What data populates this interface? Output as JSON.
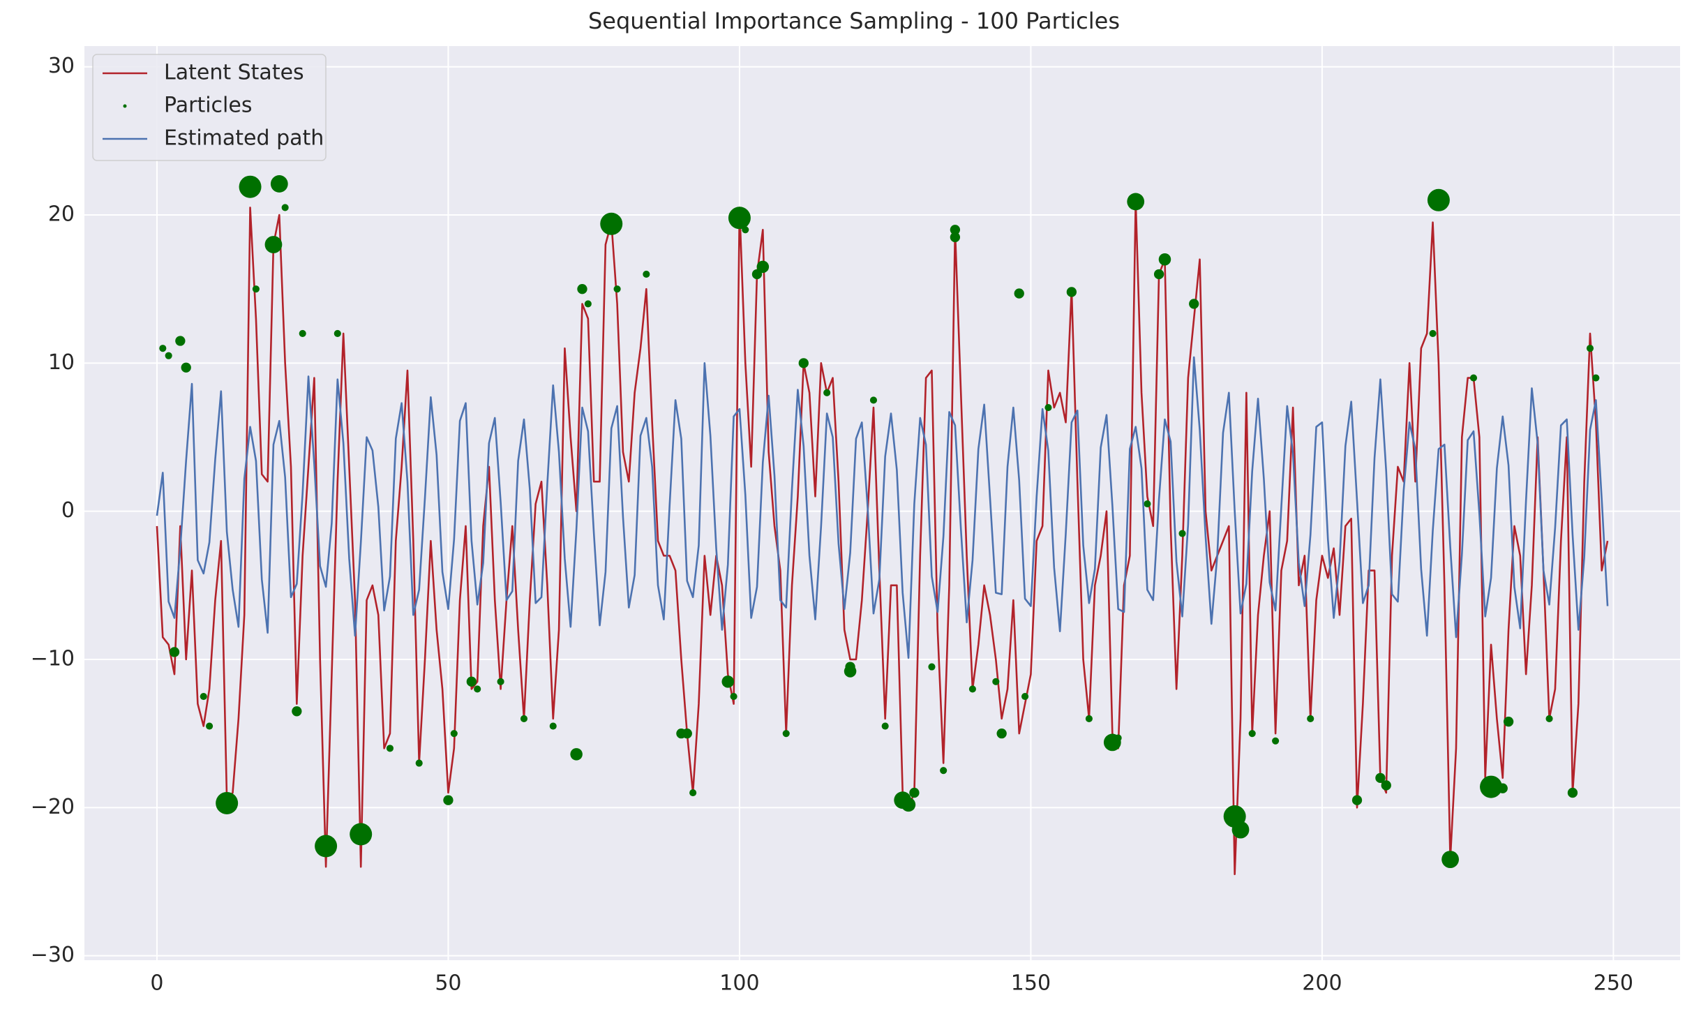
{
  "chart_data": {
    "type": "line",
    "title": "Sequential Importance Sampling - 100 Particles",
    "x": [
      0,
      1,
      2,
      3,
      4,
      5,
      6,
      7,
      8,
      9,
      10,
      11,
      12,
      13,
      14,
      15,
      16,
      17,
      18,
      19,
      20,
      21,
      22,
      23,
      24,
      25,
      26,
      27,
      28,
      29,
      30,
      31,
      32,
      33,
      34,
      35,
      36,
      37,
      38,
      39,
      40,
      41,
      42,
      43,
      44,
      45,
      46,
      47,
      48,
      49,
      50,
      51,
      52,
      53,
      54,
      55,
      56,
      57,
      58,
      59,
      60,
      61,
      62,
      63,
      64,
      65,
      66,
      67,
      68,
      69,
      70,
      71,
      72,
      73,
      74,
      75,
      76,
      77,
      78,
      79,
      80,
      81,
      82,
      83,
      84,
      85,
      86,
      87,
      88,
      89,
      90,
      91,
      92,
      93,
      94,
      95,
      96,
      97,
      98,
      99,
      100,
      101,
      102,
      103,
      104,
      105,
      106,
      107,
      108,
      109,
      110,
      111,
      112,
      113,
      114,
      115,
      116,
      117,
      118,
      119,
      120,
      121,
      122,
      123,
      124,
      125,
      126,
      127,
      128,
      129,
      130,
      131,
      132,
      133,
      134,
      135,
      136,
      137,
      138,
      139,
      140,
      141,
      142,
      143,
      144,
      145,
      146,
      147,
      148,
      149,
      150,
      151,
      152,
      153,
      154,
      155,
      156,
      157,
      158,
      159,
      160,
      161,
      162,
      163,
      164,
      165,
      166,
      167,
      168,
      169,
      170,
      171,
      172,
      173,
      174,
      175,
      176,
      177,
      178,
      179,
      180,
      181,
      182,
      183,
      184,
      185,
      186,
      187,
      188,
      189,
      190,
      191,
      192,
      193,
      194,
      195,
      196,
      197,
      198,
      199,
      200,
      201,
      202,
      203,
      204,
      205,
      206,
      207,
      208,
      209,
      210,
      211,
      212,
      213,
      214,
      215,
      216,
      217,
      218,
      219,
      220,
      221,
      222,
      223,
      224,
      225,
      226,
      227,
      228,
      229,
      230,
      231,
      232,
      233,
      234,
      235,
      236,
      237,
      238,
      239,
      240,
      241,
      242,
      243,
      244,
      245,
      246,
      247,
      248,
      249
    ],
    "series": [
      {
        "name": "Latent States",
        "color": "#b2222a",
        "values": [
          -1,
          -8.5,
          -9,
          -11,
          -1,
          -10,
          -4,
          -13,
          -14.5,
          -12,
          -6,
          -2,
          -19.5,
          -19,
          -14,
          -7,
          20.5,
          13,
          2.5,
          2,
          18,
          20,
          10,
          3,
          -13,
          -3,
          3,
          9,
          -10,
          -24,
          -11,
          2,
          12,
          3,
          -6,
          -24,
          -6,
          -5,
          -7,
          -16,
          -15,
          -2,
          3,
          9.5,
          -2,
          -17,
          -10,
          -2,
          -8,
          -12,
          -19,
          -16,
          -6,
          -1,
          -12,
          -11.5,
          -1,
          3,
          -6,
          -12,
          -6,
          -1,
          -8,
          -14,
          -6,
          0.5,
          2,
          -5,
          -14,
          -8,
          11,
          5,
          0,
          14,
          13,
          2,
          2,
          18,
          19.5,
          14,
          4,
          2,
          8,
          11,
          15,
          6,
          -2,
          -3,
          -3,
          -4,
          -10,
          -15,
          -19,
          -13,
          -3,
          -7,
          -3,
          -5,
          -11,
          -13,
          20.5,
          10,
          3,
          16,
          19,
          4,
          -1,
          -4,
          -15,
          -5,
          1,
          10,
          8,
          1,
          10,
          8,
          9,
          2,
          -8,
          -10,
          -10,
          -6,
          0,
          7,
          -4,
          -14,
          -5,
          -5,
          -19,
          -20,
          -19,
          -3,
          9,
          9.5,
          -8,
          -17,
          -5,
          19,
          8,
          -3,
          -12,
          -9,
          -5,
          -7,
          -10,
          -14,
          -12,
          -6,
          -15,
          -13,
          -11,
          -2,
          -1,
          9.5,
          7,
          8,
          6,
          15,
          2,
          -10,
          -14,
          -5,
          -3,
          0,
          -15,
          -16,
          -5,
          -3,
          21,
          8,
          1,
          -1,
          16,
          17,
          -1,
          -12,
          -3,
          9,
          13,
          17,
          0,
          -4,
          -3,
          -2,
          -1,
          -24.5,
          -14,
          8,
          -15,
          -7,
          -3,
          0,
          -15,
          -4,
          -2,
          7,
          -5,
          -3,
          -14,
          -6,
          -3,
          -4.5,
          -2.5,
          -7,
          -1,
          -0.5,
          -20,
          -13,
          -4,
          -4,
          -18,
          -19,
          -3,
          3,
          2,
          10,
          2,
          11,
          12,
          19.5,
          10,
          -5,
          -23.5,
          -16,
          5,
          9,
          9,
          5,
          -18,
          -9,
          -14,
          -18,
          -8,
          -1,
          -3,
          -11,
          -5,
          5,
          -4,
          -14,
          -12,
          -2,
          5,
          -19,
          -13,
          2,
          12,
          6,
          -4,
          -2
        ]
      },
      {
        "name": "Particles",
        "type": "scatter",
        "color": "#007000",
        "x": [
          12,
          16,
          21,
          20,
          29,
          35,
          78,
          100,
          168,
          220,
          185,
          186,
          229,
          222,
          164,
          148,
          137,
          128,
          129,
          173,
          178,
          72,
          90,
          104,
          119,
          4,
          5,
          1,
          2,
          3,
          8,
          9,
          24,
          25,
          31,
          40,
          45,
          50,
          51,
          54,
          55,
          59,
          63,
          68,
          73,
          74,
          79,
          84,
          91,
          92,
          98,
          99,
          103,
          108,
          111,
          115,
          119,
          123,
          125,
          130,
          133,
          135,
          140,
          144,
          145,
          149,
          153,
          157,
          160,
          165,
          170,
          172,
          176,
          188,
          192,
          198,
          206,
          210,
          211,
          219,
          226,
          231,
          232,
          239,
          243,
          246,
          247,
          137,
          101,
          17,
          22
        ],
        "values": [
          -19.7,
          21.9,
          22.1,
          18,
          -22.6,
          -21.8,
          19.4,
          19.8,
          20.9,
          21,
          -20.6,
          -21.5,
          -18.6,
          -23.5,
          -15.6,
          14.7,
          19,
          -19.5,
          -19.8,
          17,
          14,
          -16.4,
          -15,
          16.5,
          -10.8,
          11.5,
          9.7,
          11,
          10.5,
          -9.5,
          -12.5,
          -14.5,
          -13.5,
          12,
          12,
          -16,
          -17,
          -19.5,
          -15,
          -11.5,
          -12,
          -11.5,
          -14,
          -14.5,
          15,
          14,
          15,
          16,
          -15,
          -19,
          -11.5,
          -12.5,
          16,
          -15,
          10,
          8,
          -10.5,
          7.5,
          -14.5,
          -19,
          -10.5,
          -17.5,
          -12,
          -11.5,
          -15,
          -12.5,
          7,
          14.8,
          -14,
          -15.3,
          0.5,
          16,
          -1.5,
          -15,
          -15.5,
          -14,
          -19.5,
          -18,
          -18.5,
          12,
          9,
          -18.7,
          -14.2,
          -14,
          -19,
          11,
          9,
          18.5,
          19,
          15,
          20.5
        ],
        "sizes": [
          100,
          100,
          60,
          60,
          100,
          100,
          100,
          100,
          60,
          100,
          100,
          60,
          100,
          60,
          60,
          20,
          20,
          60,
          40,
          30,
          20,
          30,
          20,
          30,
          30,
          20,
          20,
          10,
          10,
          20,
          10,
          10,
          20,
          10,
          10,
          10,
          10,
          20,
          10,
          20,
          10,
          10,
          10,
          10,
          20,
          10,
          10,
          10,
          20,
          10,
          30,
          10,
          20,
          10,
          20,
          10,
          20,
          10,
          10,
          20,
          10,
          10,
          10,
          10,
          20,
          10,
          10,
          20,
          10,
          10,
          10,
          20,
          10,
          10,
          10,
          10,
          20,
          20,
          20,
          10,
          10,
          20,
          20,
          10,
          20,
          10,
          10,
          20,
          10,
          10,
          10
        ]
      },
      {
        "name": "Estimated path",
        "color": "#4c72b0",
        "values": [
          -0.3,
          2.6,
          -6.1,
          -7.2,
          -2.5,
          3.4,
          8.6,
          -3.3,
          -4.2,
          -2.1,
          3.5,
          8.1,
          -1.4,
          -5.3,
          -7.8,
          2.2,
          5.7,
          3.4,
          -4.6,
          -8.2,
          4.5,
          6.1,
          2.3,
          -5.8,
          -4.9,
          1.2,
          9.1,
          3.2,
          -3.7,
          -5.1,
          -0.8,
          8.9,
          4.6,
          -3.2,
          -8.4,
          -2.1,
          5.0,
          4.1,
          0.3,
          -6.7,
          -4.4,
          4.9,
          7.3,
          2.0,
          -7.0,
          -5.3,
          0.9,
          7.7,
          3.8,
          -4.1,
          -6.6,
          -1.9,
          6.1,
          7.3,
          -2.0,
          -6.3,
          -3.5,
          4.6,
          6.3,
          0.6,
          -6.0,
          -5.4,
          3.4,
          6.2,
          1.5,
          -6.2,
          -5.8,
          1.8,
          8.5,
          4.0,
          -3.2,
          -7.8,
          -1.2,
          7.0,
          5.4,
          -1.5,
          -7.7,
          -4.1,
          5.6,
          7.1,
          -0.4,
          -6.5,
          -4.3,
          5.1,
          6.3,
          3.0,
          -5.0,
          -7.3,
          0.4,
          7.5,
          4.9,
          -4.7,
          -5.8,
          -2.3,
          10.0,
          5.1,
          -2.5,
          -8.0,
          -3.6,
          6.4,
          6.9,
          1.1,
          -7.2,
          -5.1,
          3.3,
          7.8,
          2.4,
          -6.0,
          -6.5,
          1.5,
          8.2,
          4.4,
          -3.0,
          -7.3,
          -1.0,
          6.6,
          5.0,
          -2.2,
          -6.6,
          -2.8,
          4.9,
          6.0,
          0.2,
          -6.9,
          -4.6,
          3.7,
          6.6,
          2.8,
          -5.5,
          -9.9,
          0.5,
          6.3,
          4.5,
          -4.4,
          -6.8,
          -1.7,
          6.7,
          5.8,
          -1.2,
          -7.5,
          -3.3,
          4.2,
          7.2,
          0.9,
          -5.5,
          -5.6,
          3.0,
          7.0,
          2.1,
          -5.9,
          -6.4,
          1.0,
          6.9,
          4.1,
          -3.8,
          -8.1,
          -1.5,
          6.0,
          6.8,
          -2.3,
          -6.2,
          -3.9,
          4.3,
          6.5,
          0.4,
          -6.6,
          -6.8,
          4.2,
          5.7,
          2.9,
          -5.3,
          -6.0,
          0.8,
          6.2,
          4.7,
          -3.4,
          -7.1,
          -0.9,
          10.4,
          5.5,
          -1.7,
          -7.6,
          -3.0,
          5.3,
          8.0,
          0.0,
          -6.9,
          -4.9,
          2.7,
          7.6,
          2.2,
          -4.8,
          -6.7,
          0.3,
          7.1,
          3.9,
          -3.5,
          -6.4,
          -1.6,
          5.7,
          6.0,
          -1.9,
          -7.2,
          -3.4,
          4.4,
          7.4,
          0.7,
          -6.2,
          -5.0,
          3.6,
          8.9,
          2.7,
          -5.6,
          -6.1,
          1.4,
          6.0,
          4.2,
          -3.9,
          -8.4,
          -1.3,
          4.2,
          4.5,
          -2.4,
          -8.5,
          -2.9,
          4.8,
          5.4,
          -0.2,
          -7.1,
          -4.5,
          2.9,
          6.4,
          3.1,
          -5.1,
          -7.9,
          0.7,
          8.3,
          4.6,
          -4.0,
          -6.3,
          -1.1,
          5.8,
          6.2,
          -1.6,
          -8.0,
          -3.1,
          5.5,
          7.5,
          0.8,
          -6.4
        ]
      }
    ],
    "xlim": [
      -12.45,
      261.45
    ],
    "ylim": [
      -30.3,
      31.4
    ],
    "xticks": [
      0,
      50,
      100,
      150,
      200,
      250
    ],
    "yticks": [
      {
        "value": -30,
        "label": "−30"
      },
      {
        "value": -20,
        "label": "−20"
      },
      {
        "value": -10,
        "label": "−10"
      },
      0,
      10,
      20,
      30
    ],
    "grid": true,
    "legend": "upper left"
  }
}
